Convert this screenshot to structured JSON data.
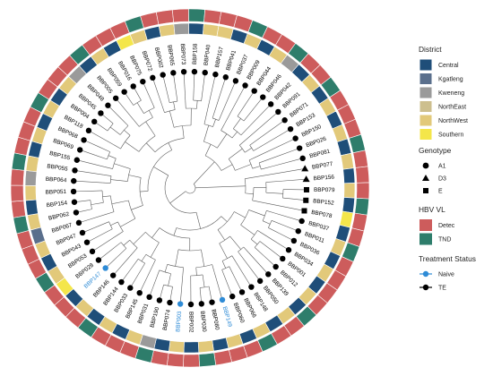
{
  "colors": {
    "branch": "#5a5a5a",
    "tip_default": "#000000",
    "tip_naive": "#2e8bd6",
    "district": {
      "Central": "#1f4e79",
      "Kgatleng": "#5a6f8c",
      "Kweneng": "#9a9a9a",
      "NorthEast": "#cdbf8e",
      "NorthWest": "#e2c97a",
      "Southern": "#f4e64a"
    },
    "hbv": {
      "Detec": "#cd5c5c",
      "TND": "#2e7d6b"
    }
  },
  "legend": {
    "district": {
      "title": "District",
      "items": [
        "Central",
        "Kgatleng",
        "Kweneng",
        "NorthEast",
        "NorthWest",
        "Southern"
      ]
    },
    "genotype": {
      "title": "Genotype",
      "items": [
        {
          "label": "A1",
          "shape": "circle"
        },
        {
          "label": "D3",
          "shape": "triangle"
        },
        {
          "label": "E",
          "shape": "square"
        }
      ]
    },
    "hbv": {
      "title": "HBV VL",
      "items": [
        "Detec",
        "TND"
      ]
    },
    "treatment": {
      "title": "Treatment Status",
      "items": [
        "Naive",
        "TE"
      ]
    }
  },
  "tips": [
    {
      "id": "BBP157",
      "genotype": "A1",
      "treatment": "TE",
      "district": "NorthWest",
      "hbv": "Detec"
    },
    {
      "id": "BBP041",
      "genotype": "A1",
      "treatment": "TE",
      "district": "Central",
      "hbv": "Detec"
    },
    {
      "id": "BBP037",
      "genotype": "A1",
      "treatment": "TE",
      "district": "NorthWest",
      "hbv": "TND"
    },
    {
      "id": "BBP009",
      "genotype": "A1",
      "treatment": "TE",
      "district": "Central",
      "hbv": "Detec"
    },
    {
      "id": "BBP044",
      "genotype": "A1",
      "treatment": "TE",
      "district": "NorthWest",
      "hbv": "Detec"
    },
    {
      "id": "BBP046",
      "genotype": "A1",
      "treatment": "TE",
      "district": "Kweneng",
      "hbv": "TND"
    },
    {
      "id": "BBP042",
      "genotype": "A1",
      "treatment": "TE",
      "district": "Central",
      "hbv": "Detec"
    },
    {
      "id": "BBP091",
      "genotype": "A1",
      "treatment": "TE",
      "district": "NorthWest",
      "hbv": "Detec"
    },
    {
      "id": "BBP071",
      "genotype": "A1",
      "treatment": "TE",
      "district": "Central",
      "hbv": "TND"
    },
    {
      "id": "BBP153",
      "genotype": "A1",
      "treatment": "TE",
      "district": "NorthWest",
      "hbv": "Detec"
    },
    {
      "id": "BBP150",
      "genotype": "A1",
      "treatment": "TE",
      "district": "Central",
      "hbv": "Detec"
    },
    {
      "id": "BBP026",
      "genotype": "A1",
      "treatment": "TE",
      "district": "NorthWest",
      "hbv": "Detec"
    },
    {
      "id": "BBP081",
      "genotype": "A1",
      "treatment": "TE",
      "district": "Central",
      "hbv": "TND"
    },
    {
      "id": "BBP077",
      "genotype": "D3",
      "treatment": "TE",
      "district": "NorthWest",
      "hbv": "Detec"
    },
    {
      "id": "BBP156",
      "genotype": "D3",
      "treatment": "TE",
      "district": "Central",
      "hbv": "Detec"
    },
    {
      "id": "BBP079",
      "genotype": "E",
      "treatment": "TE",
      "district": "NorthWest",
      "hbv": "Detec"
    },
    {
      "id": "BBP152",
      "genotype": "E",
      "treatment": "TE",
      "district": "Central",
      "hbv": "TND"
    },
    {
      "id": "BBP078",
      "genotype": "E",
      "treatment": "TE",
      "district": "Southern",
      "hbv": "Detec"
    },
    {
      "id": "BBP037",
      "genotype": "A1",
      "treatment": "TE",
      "district": "Central",
      "hbv": "Detec"
    },
    {
      "id": "BBP011",
      "genotype": "A1",
      "treatment": "TE",
      "district": "NorthWest",
      "hbv": "TND"
    },
    {
      "id": "BBP036",
      "genotype": "A1",
      "treatment": "TE",
      "district": "Central",
      "hbv": "Detec"
    },
    {
      "id": "BBP034",
      "genotype": "A1",
      "treatment": "TE",
      "district": "NorthWest",
      "hbv": "Detec"
    },
    {
      "id": "BBP001",
      "genotype": "A1",
      "treatment": "TE",
      "district": "Central",
      "hbv": "Detec"
    },
    {
      "id": "BBP012",
      "genotype": "A1",
      "treatment": "TE",
      "district": "NorthWest",
      "hbv": "Detec"
    },
    {
      "id": "BBP139",
      "genotype": "A1",
      "treatment": "TE",
      "district": "Central",
      "hbv": "TND"
    },
    {
      "id": "BBP050",
      "genotype": "A1",
      "treatment": "TE",
      "district": "NorthWest",
      "hbv": "Detec"
    },
    {
      "id": "BBP148",
      "genotype": "A1",
      "treatment": "TE",
      "district": "Central",
      "hbv": "Detec"
    },
    {
      "id": "BBP066",
      "genotype": "A1",
      "treatment": "TE",
      "district": "NorthWest",
      "hbv": "TND"
    },
    {
      "id": "BBP060",
      "genotype": "A1",
      "treatment": "TE",
      "district": "Central",
      "hbv": "Detec"
    },
    {
      "id": "BBP149",
      "genotype": "A1",
      "treatment": "Naive",
      "district": "NorthWest",
      "hbv": "Detec"
    },
    {
      "id": "BBP080",
      "genotype": "A1",
      "treatment": "TE",
      "district": "Central",
      "hbv": "Detec"
    },
    {
      "id": "BBP030",
      "genotype": "A1",
      "treatment": "TE",
      "district": "NorthWest",
      "hbv": "TND"
    },
    {
      "id": "BBP002",
      "genotype": "A1",
      "treatment": "TE",
      "district": "Central",
      "hbv": "Detec"
    },
    {
      "id": "BBP003",
      "genotype": "A1",
      "treatment": "Naive",
      "district": "NorthWest",
      "hbv": "Detec"
    },
    {
      "id": "BBP074",
      "genotype": "A1",
      "treatment": "TE",
      "district": "Central",
      "hbv": "Detec"
    },
    {
      "id": "BBP190",
      "genotype": "A1",
      "treatment": "TE",
      "district": "Kweneng",
      "hbv": "TND"
    },
    {
      "id": "BBP031",
      "genotype": "A1",
      "treatment": "TE",
      "district": "NorthWest",
      "hbv": "Detec"
    },
    {
      "id": "BBP145",
      "genotype": "A1",
      "treatment": "TE",
      "district": "Central",
      "hbv": "Detec"
    },
    {
      "id": "BBP033",
      "genotype": "A1",
      "treatment": "TE",
      "district": "NorthWest",
      "hbv": "Detec"
    },
    {
      "id": "BBP144",
      "genotype": "A1",
      "treatment": "TE",
      "district": "Central",
      "hbv": "TND"
    },
    {
      "id": "BBP146",
      "genotype": "A1",
      "treatment": "TE",
      "district": "NorthWest",
      "hbv": "Detec"
    },
    {
      "id": "BBP147",
      "genotype": "A1",
      "treatment": "Naive",
      "district": "Central",
      "hbv": "Detec"
    },
    {
      "id": "BBP028",
      "genotype": "A1",
      "treatment": "TE",
      "district": "Southern",
      "hbv": "Detec"
    },
    {
      "id": "BBP053",
      "genotype": "A1",
      "treatment": "TE",
      "district": "NorthWest",
      "hbv": "TND"
    },
    {
      "id": "BBP043",
      "genotype": "A1",
      "treatment": "TE",
      "district": "Central",
      "hbv": "Detec"
    },
    {
      "id": "BBP047",
      "genotype": "A1",
      "treatment": "TE",
      "district": "NorthWest",
      "hbv": "Detec"
    },
    {
      "id": "BBP067",
      "genotype": "A1",
      "treatment": "TE",
      "district": "Kgatleng",
      "hbv": "Detec"
    },
    {
      "id": "BBP062",
      "genotype": "A1",
      "treatment": "TE",
      "district": "NorthWest",
      "hbv": "TND"
    },
    {
      "id": "BBP154",
      "genotype": "A1",
      "treatment": "TE",
      "district": "Central",
      "hbv": "Detec"
    },
    {
      "id": "BBP051",
      "genotype": "A1",
      "treatment": "TE",
      "district": "NorthWest",
      "hbv": "Detec"
    },
    {
      "id": "BBP064",
      "genotype": "A1",
      "treatment": "TE",
      "district": "Kweneng",
      "hbv": "Detec"
    },
    {
      "id": "BBP055",
      "genotype": "A1",
      "treatment": "TE",
      "district": "NorthWest",
      "hbv": "TND"
    },
    {
      "id": "BBP155",
      "genotype": "A1",
      "treatment": "TE",
      "district": "Central",
      "hbv": "Detec"
    },
    {
      "id": "BBP069",
      "genotype": "A1",
      "treatment": "TE",
      "district": "NorthWest",
      "hbv": "Detec"
    },
    {
      "id": "BBP068",
      "genotype": "A1",
      "treatment": "TE",
      "district": "Central",
      "hbv": "Detec"
    },
    {
      "id": "BBP118",
      "genotype": "A1",
      "treatment": "TE",
      "district": "NorthWest",
      "hbv": "TND"
    },
    {
      "id": "BBP004",
      "genotype": "A1",
      "treatment": "TE",
      "district": "Central",
      "hbv": "Detec"
    },
    {
      "id": "BBP045",
      "genotype": "A1",
      "treatment": "TE",
      "district": "NorthWest",
      "hbv": "Detec"
    },
    {
      "id": "BBP048",
      "genotype": "A1",
      "treatment": "TE",
      "district": "Kweneng",
      "hbv": "Detec"
    },
    {
      "id": "BBP005",
      "genotype": "A1",
      "treatment": "TE",
      "district": "Central",
      "hbv": "TND"
    },
    {
      "id": "BBP059",
      "genotype": "A1",
      "treatment": "TE",
      "district": "NorthWest",
      "hbv": "Detec"
    },
    {
      "id": "BBP016",
      "genotype": "A1",
      "treatment": "TE",
      "district": "Central",
      "hbv": "Detec"
    },
    {
      "id": "BBP075",
      "genotype": "A1",
      "treatment": "TE",
      "district": "Southern",
      "hbv": "Detec"
    },
    {
      "id": "BBP072",
      "genotype": "A1",
      "treatment": "TE",
      "district": "NorthWest",
      "hbv": "TND"
    },
    {
      "id": "BBP002",
      "genotype": "A1",
      "treatment": "TE",
      "district": "Central",
      "hbv": "Detec"
    },
    {
      "id": "BBP065",
      "genotype": "A1",
      "treatment": "TE",
      "district": "NorthWest",
      "hbv": "Detec"
    },
    {
      "id": "BBP073",
      "genotype": "A1",
      "treatment": "TE",
      "district": "Kweneng",
      "hbv": "Detec"
    },
    {
      "id": "BBP158",
      "genotype": "A1",
      "treatment": "TE",
      "district": "Central",
      "hbv": "TND"
    },
    {
      "id": "BBP040",
      "genotype": "A1",
      "treatment": "TE",
      "district": "NorthWest",
      "hbv": "Detec"
    }
  ]
}
